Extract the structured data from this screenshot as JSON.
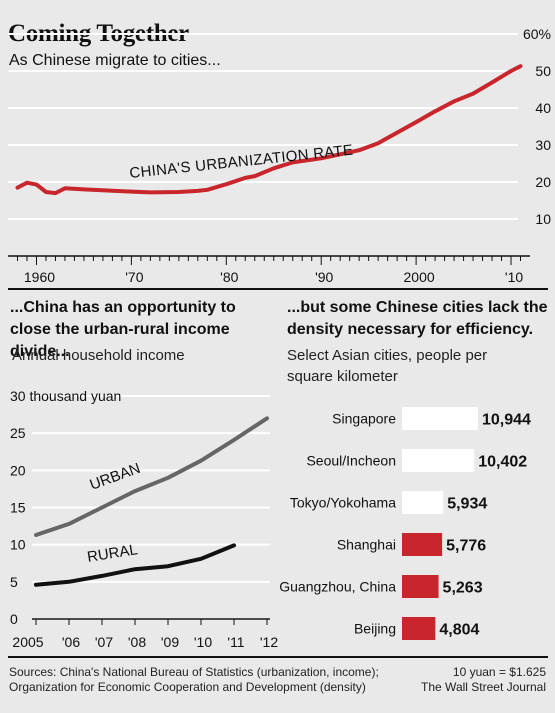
{
  "header": {
    "title": "Coming Together",
    "subtitle": "As Chinese migrate to cities..."
  },
  "chart_data": [
    {
      "type": "line",
      "series": [
        {
          "name": "CHINA'S URBANIZATION RATE",
          "x": [
            1958,
            1959,
            1960,
            1961,
            1962,
            1963,
            1965,
            1970,
            1972,
            1975,
            1977,
            1978,
            1980,
            1982,
            1983,
            1985,
            1987,
            1990,
            1992,
            1994,
            1996,
            2000,
            2002,
            2004,
            2006,
            2008,
            2010,
            2011
          ],
          "values": [
            18.5,
            19.8,
            19.3,
            17.3,
            17.0,
            18.3,
            18.0,
            17.4,
            17.2,
            17.3,
            17.6,
            17.9,
            19.4,
            21.1,
            21.6,
            23.7,
            25.3,
            26.4,
            27.5,
            28.6,
            30.5,
            36.2,
            39.1,
            41.8,
            43.9,
            46.9,
            50.0,
            51.3
          ]
        }
      ],
      "x_ticks": [
        "1960",
        "'70",
        "'80",
        "'90",
        "2000",
        "'10"
      ],
      "y_ticks": [
        "10",
        "20",
        "30",
        "40",
        "50",
        "60%"
      ],
      "xlim": [
        1957,
        2012
      ],
      "ylim": [
        0,
        60
      ],
      "grid": true,
      "series_color": "#c8262c"
    },
    {
      "type": "line",
      "title": "...China has an opportunity to close the urban-rural income divide...",
      "subtitle": "Annual household income",
      "series": [
        {
          "name": "URBAN",
          "x": [
            2005,
            2006,
            2007,
            2008,
            2009,
            2010,
            2011,
            2012
          ],
          "values": [
            11.3,
            12.8,
            15.0,
            17.2,
            19.0,
            21.3,
            24.1,
            27.0
          ]
        },
        {
          "name": "RURAL",
          "x": [
            2005,
            2006,
            2007,
            2008,
            2009,
            2010,
            2011
          ],
          "values": [
            4.6,
            5.0,
            5.8,
            6.7,
            7.1,
            8.1,
            9.9
          ]
        }
      ],
      "x_ticks": [
        "2005",
        "'06",
        "'07",
        "'08",
        "'09",
        "'10",
        "'11",
        "'12"
      ],
      "y_ticks": [
        "0",
        "5",
        "10",
        "15",
        "20",
        "25",
        "30 thousand yuan"
      ],
      "xlim": [
        2005,
        2012
      ],
      "ylim": [
        0,
        30
      ],
      "grid": true
    },
    {
      "type": "bar",
      "title": "...but some Chinese cities lack the density necessary for efficiency.",
      "subtitle": "Select Asian cities, people per square kilometer",
      "categories": [
        "Singapore",
        "Seoul/Incheon",
        "Tokyo/Yokohama",
        "Shanghai",
        "Guangzhou, China",
        "Beijing"
      ],
      "values": [
        10944,
        10402,
        5934,
        5776,
        5263,
        4804
      ],
      "value_labels": [
        "10,944",
        "10,402",
        "5,934",
        "5,776",
        "5,263",
        "4,804"
      ],
      "colors": [
        "#ffffff",
        "#ffffff",
        "#ffffff",
        "#c8262c",
        "#c8262c",
        "#c8262c"
      ]
    }
  ],
  "footer": {
    "sources_line1": "Sources: China's National Bureau of Statistics (urbanization, income);",
    "sources_line2": "Organization for Economic Cooperation and Development (density)",
    "note": "10 yuan = $1.625",
    "credit": "The Wall Street Journal"
  }
}
